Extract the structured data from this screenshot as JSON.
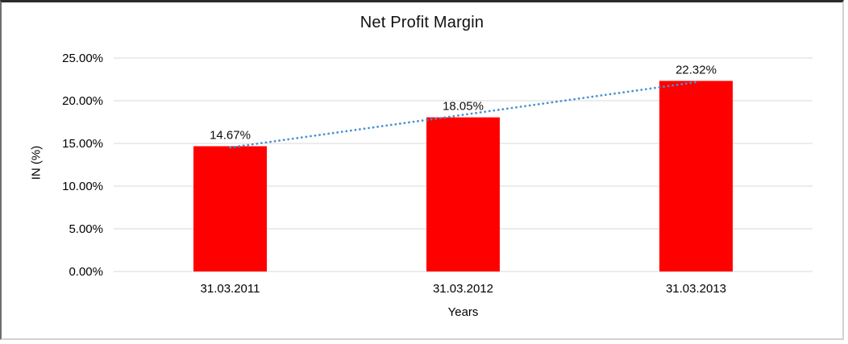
{
  "chart_data": {
    "type": "bar",
    "title": "Net Profit Margin",
    "xlabel": "Years",
    "ylabel": "IN (%)",
    "categories": [
      "31.03.2011",
      "31.03.2012",
      "31.03.2013"
    ],
    "values": [
      14.67,
      18.05,
      22.32
    ],
    "data_labels": [
      "14.67%",
      "18.05%",
      "22.32%"
    ],
    "ylim": [
      0,
      25
    ],
    "ytick_step": 5,
    "ytick_labels": [
      "0.00%",
      "5.00%",
      "10.00%",
      "15.00%",
      "20.00%",
      "25.00%"
    ],
    "grid": true,
    "legend": "none",
    "bar_color": "#FF0000",
    "gridline_color": "#D9D9D9",
    "trendline": {
      "type": "linear",
      "style": "dotted",
      "color": "#4A90D5"
    }
  }
}
